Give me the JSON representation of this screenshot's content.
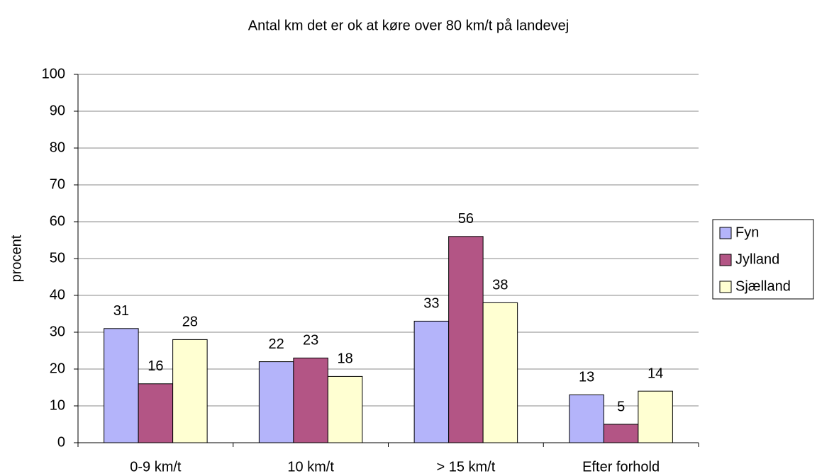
{
  "chart_data": {
    "type": "bar",
    "title": "Antal km det er ok at køre over 80 km/t på landevej",
    "y_label": "procent",
    "categories": [
      "0-9 km/t",
      "10 km/t",
      "> 15 km/t",
      "Efter forhold"
    ],
    "series": [
      {
        "name": "Fyn",
        "color": "#b4b4fa",
        "values": [
          31,
          22,
          33,
          13
        ]
      },
      {
        "name": "Jylland",
        "color": "#b35585",
        "values": [
          16,
          23,
          56,
          5
        ]
      },
      {
        "name": "Sjælland",
        "color": "#ffffd2",
        "values": [
          28,
          18,
          38,
          14
        ]
      }
    ],
    "ylim": [
      0,
      100
    ],
    "yticks": [
      0,
      10,
      20,
      30,
      40,
      50,
      60,
      70,
      80,
      90,
      100
    ],
    "grid": true,
    "legend": "right"
  }
}
